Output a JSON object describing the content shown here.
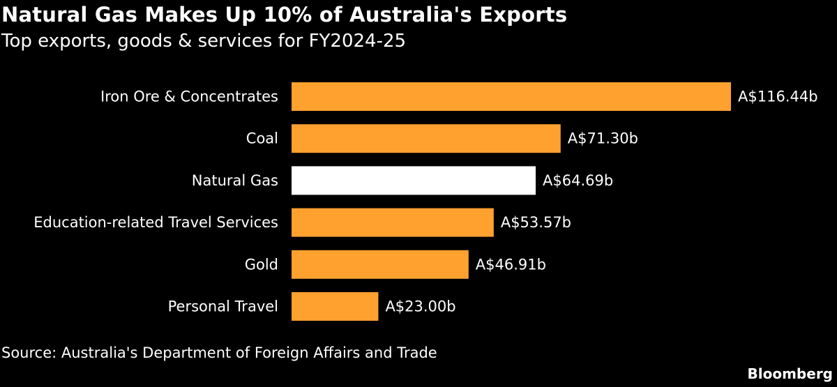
{
  "title": "Natural Gas Makes Up 10% of Australia's Exports",
  "subtitle": "Top exports, goods & services for FY2024-25",
  "source": "Source: Australia's Department of Foreign Affairs and Trade",
  "brand": "Bloomberg",
  "colors": {
    "background": "#000000",
    "bar": "#ffa12f",
    "highlight": "#ffffff",
    "text": "#ffffff"
  },
  "chart_data": {
    "type": "bar",
    "orientation": "horizontal",
    "categories": [
      "Iron Ore & Concentrates",
      "Coal",
      "Natural Gas",
      "Education-related Travel Services",
      "Gold",
      "Personal Travel"
    ],
    "values": [
      116.44,
      71.3,
      64.69,
      53.57,
      46.91,
      23.0
    ],
    "value_labels": [
      "A$116.44b",
      "A$71.30b",
      "A$64.69b",
      "A$53.57b",
      "A$46.91b",
      "A$23.00b"
    ],
    "highlighted_category": "Natural Gas",
    "unit": "A$ billions",
    "xlim": [
      0,
      116.44
    ],
    "grid": false,
    "legend": "none"
  }
}
